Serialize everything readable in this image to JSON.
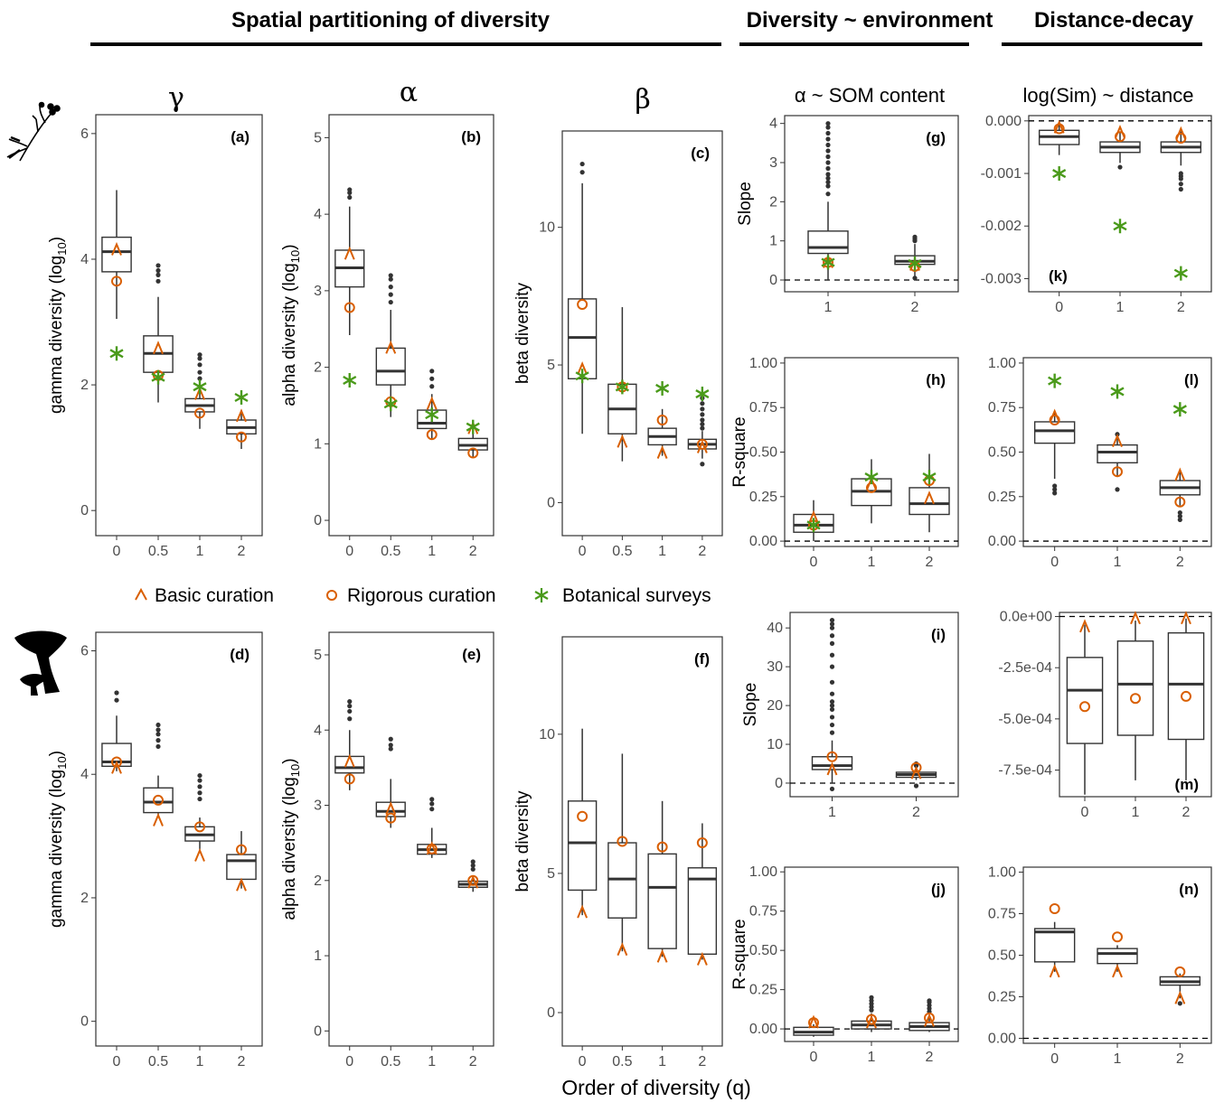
{
  "headers": {
    "spatial": "Spatial partitioning of diversity",
    "environment": "Diversity ~ environment",
    "decay": "Distance-decay"
  },
  "column_titles": {
    "gamma": "γ",
    "alpha": "α",
    "beta": "β",
    "som": "α ~ SOM content",
    "sim": "log(Sim) ~ distance"
  },
  "legend": {
    "basic": "Basic curation",
    "rigorous": "Rigorous curation",
    "surveys": "Botanical surveys"
  },
  "xlabel": "Order of diversity (q)",
  "icons": {
    "top": "plant-icon",
    "bottom": "mushroom-icon"
  },
  "colors": {
    "basic": "#d95f02",
    "rigorous": "#d95f02",
    "surveys": "#4a9a1a",
    "box": "#333333"
  },
  "chart_data": [
    {
      "id": "a",
      "label": "(a)",
      "type": "box",
      "ylabel": "gamma diversity (log10)",
      "ylim": [
        -0.4,
        6.3
      ],
      "yticks": [
        0,
        2,
        4,
        6
      ],
      "categories": [
        "0",
        "0.5",
        "1",
        "2"
      ],
      "boxes": [
        {
          "q1": 3.8,
          "med": 4.12,
          "q3": 4.35,
          "lo": 3.05,
          "hi": 5.1,
          "out": []
        },
        {
          "q1": 2.2,
          "med": 2.5,
          "q3": 2.78,
          "lo": 1.72,
          "hi": 3.4,
          "out": [
            3.65,
            3.75,
            3.82,
            3.9
          ]
        },
        {
          "q1": 1.57,
          "med": 1.67,
          "q3": 1.78,
          "lo": 1.3,
          "hi": 2.0,
          "out": [
            2.1,
            2.2,
            2.32,
            2.42,
            2.48
          ]
        },
        {
          "q1": 1.22,
          "med": 1.32,
          "q3": 1.44,
          "lo": 0.98,
          "hi": 1.6,
          "out": []
        }
      ],
      "basic": [
        4.15,
        2.58,
        1.85,
        1.5
      ],
      "rigorous": [
        3.65,
        2.15,
        1.55,
        1.17
      ],
      "surveys": [
        2.5,
        2.12,
        1.97,
        1.8
      ]
    },
    {
      "id": "b",
      "label": "(b)",
      "type": "box",
      "ylabel": "alpha diversity (log10)",
      "ylim": [
        -0.2,
        5.3
      ],
      "yticks": [
        0,
        1,
        2,
        3,
        4,
        5
      ],
      "categories": [
        "0",
        "0.5",
        "1",
        "2"
      ],
      "boxes": [
        {
          "q1": 3.05,
          "med": 3.3,
          "q3": 3.53,
          "lo": 2.42,
          "hi": 4.1,
          "out": [
            4.22,
            4.28,
            4.32
          ]
        },
        {
          "q1": 1.77,
          "med": 1.95,
          "q3": 2.25,
          "lo": 1.35,
          "hi": 2.75,
          "out": [
            2.85,
            2.95,
            3.05,
            3.15,
            3.2
          ]
        },
        {
          "q1": 1.2,
          "med": 1.27,
          "q3": 1.44,
          "lo": 1.05,
          "hi": 1.65,
          "out": [
            1.75,
            1.85,
            1.95
          ]
        },
        {
          "q1": 0.92,
          "med": 0.98,
          "q3": 1.07,
          "lo": 0.82,
          "hi": 1.18,
          "out": []
        }
      ],
      "basic": [
        3.48,
        2.25,
        1.52,
        1.2
      ],
      "rigorous": [
        2.78,
        1.55,
        1.12,
        0.88
      ],
      "surveys": [
        1.83,
        1.52,
        1.38,
        1.22
      ]
    },
    {
      "id": "c",
      "label": "(c)",
      "type": "box",
      "ylabel": "beta diversity",
      "ylim": [
        -1.2,
        13.5
      ],
      "yticks": [
        0,
        5,
        10
      ],
      "categories": [
        "0",
        "0.5",
        "1",
        "2"
      ],
      "boxes": [
        {
          "q1": 4.5,
          "med": 6.0,
          "q3": 7.4,
          "lo": 2.5,
          "hi": 11.6,
          "out": [
            12.0,
            12.3
          ]
        },
        {
          "q1": 2.5,
          "med": 3.4,
          "q3": 4.3,
          "lo": 1.5,
          "hi": 7.1,
          "out": []
        },
        {
          "q1": 2.1,
          "med": 2.4,
          "q3": 2.7,
          "lo": 1.7,
          "hi": 3.4,
          "out": []
        },
        {
          "q1": 1.95,
          "med": 2.12,
          "q3": 2.3,
          "lo": 1.6,
          "hi": 2.6,
          "out": [
            1.4,
            2.7,
            2.85,
            3.0,
            3.2,
            3.4,
            3.6,
            3.8
          ]
        }
      ],
      "basic": [
        4.85,
        2.2,
        1.8,
        2.0
      ],
      "rigorous": [
        7.2,
        4.2,
        3.0,
        2.12
      ],
      "surveys": [
        4.6,
        4.2,
        4.15,
        3.95
      ]
    },
    {
      "id": "d",
      "label": "(d)",
      "type": "box",
      "ylabel": "gamma diversity (log10)",
      "ylim": [
        -0.4,
        6.3
      ],
      "yticks": [
        0,
        2,
        4,
        6
      ],
      "categories": [
        "0",
        "0.5",
        "1",
        "2"
      ],
      "boxes": [
        {
          "q1": 4.13,
          "med": 4.2,
          "q3": 4.5,
          "lo": 4.05,
          "hi": 4.95,
          "out": [
            5.2,
            5.32
          ]
        },
        {
          "q1": 3.38,
          "med": 3.55,
          "q3": 3.78,
          "lo": 3.3,
          "hi": 3.98,
          "out": [
            4.45,
            4.55,
            4.65,
            4.72,
            4.8
          ]
        },
        {
          "q1": 2.92,
          "med": 3.02,
          "q3": 3.15,
          "lo": 2.78,
          "hi": 3.3,
          "out": [
            3.6,
            3.7,
            3.8,
            3.9,
            3.98
          ]
        },
        {
          "q1": 2.3,
          "med": 2.6,
          "q3": 2.7,
          "lo": 2.15,
          "hi": 3.08,
          "out": []
        }
      ],
      "basic": [
        4.1,
        3.25,
        2.68,
        2.2
      ],
      "rigorous": [
        4.2,
        3.58,
        3.15,
        2.78
      ],
      "surveys": []
    },
    {
      "id": "e",
      "label": "(e)",
      "type": "box",
      "ylabel": "alpha diversity (log10)",
      "ylim": [
        -0.2,
        5.3
      ],
      "yticks": [
        0,
        1,
        2,
        3,
        4,
        5
      ],
      "categories": [
        "0",
        "0.5",
        "1",
        "2"
      ],
      "boxes": [
        {
          "q1": 3.43,
          "med": 3.5,
          "q3": 3.65,
          "lo": 3.2,
          "hi": 4.0,
          "out": [
            4.15,
            4.25,
            4.32,
            4.38
          ]
        },
        {
          "q1": 2.85,
          "med": 2.92,
          "q3": 3.04,
          "lo": 2.7,
          "hi": 3.35,
          "out": [
            3.75,
            3.8,
            3.88
          ]
        },
        {
          "q1": 2.35,
          "med": 2.41,
          "q3": 2.48,
          "lo": 2.3,
          "hi": 2.7,
          "out": [
            2.95,
            3.02,
            3.08
          ]
        },
        {
          "q1": 1.91,
          "med": 1.95,
          "q3": 1.99,
          "lo": 1.85,
          "hi": 2.05,
          "out": [
            2.15,
            2.2,
            2.25
          ]
        }
      ],
      "basic": [
        3.58,
        2.95,
        2.42,
        1.97
      ],
      "rigorous": [
        3.35,
        2.83,
        2.42,
        2.0
      ],
      "surveys": []
    },
    {
      "id": "f",
      "label": "(f)",
      "type": "box",
      "ylabel": "beta diversity",
      "ylim": [
        -1.2,
        13.5
      ],
      "yticks": [
        0,
        5,
        10
      ],
      "categories": [
        "0",
        "0.5",
        "1",
        "2"
      ],
      "boxes": [
        {
          "q1": 4.4,
          "med": 6.1,
          "q3": 7.6,
          "lo": 3.5,
          "hi": 10.2,
          "out": []
        },
        {
          "q1": 3.4,
          "med": 4.8,
          "q3": 6.1,
          "lo": 2.2,
          "hi": 9.3,
          "out": []
        },
        {
          "q1": 2.3,
          "med": 4.5,
          "q3": 5.7,
          "lo": 2.0,
          "hi": 7.6,
          "out": []
        },
        {
          "q1": 2.1,
          "med": 4.8,
          "q3": 5.2,
          "lo": 1.9,
          "hi": 6.8,
          "out": []
        }
      ],
      "basic": [
        3.6,
        2.25,
        2.0,
        1.9
      ],
      "rigorous": [
        7.05,
        6.15,
        5.95,
        6.1
      ],
      "surveys": []
    },
    {
      "id": "g",
      "label": "(g)",
      "type": "box",
      "ylabel": "Slope",
      "ylim": [
        -0.3,
        4.2
      ],
      "yticks": [
        0,
        1,
        2,
        3,
        4
      ],
      "ytick_labels": [
        "0",
        "1",
        "2",
        "3",
        "4"
      ],
      "categories": [
        "1",
        "2"
      ],
      "hline": 0,
      "boxes": [
        {
          "q1": 0.68,
          "med": 0.83,
          "q3": 1.25,
          "lo": 0.0,
          "hi": 2.0,
          "out": [
            2.2,
            2.4,
            2.5,
            2.6,
            2.7,
            2.85,
            3.0,
            3.15,
            3.3,
            3.45,
            3.6,
            3.75,
            3.9,
            4.0
          ]
        },
        {
          "q1": 0.4,
          "med": 0.48,
          "q3": 0.62,
          "lo": 0.1,
          "hi": 0.92,
          "out": [
            1.0,
            1.05,
            1.1,
            0.05
          ]
        }
      ],
      "basic": [
        0.45,
        0.38
      ],
      "rigorous": [
        0.45,
        0.35
      ],
      "surveys": [
        0.45,
        0.42
      ]
    },
    {
      "id": "h",
      "label": "(h)",
      "type": "box",
      "ylabel": "R-square",
      "ylim": [
        -0.03,
        1.03
      ],
      "yticks": [
        0,
        0.25,
        0.5,
        0.75,
        1
      ],
      "ytick_labels": [
        "0.00",
        "0.25",
        "0.50",
        "0.75",
        "1.00"
      ],
      "categories": [
        "0",
        "1",
        "2"
      ],
      "hline": 0,
      "boxes": [
        {
          "q1": 0.05,
          "med": 0.09,
          "q3": 0.15,
          "lo": 0.0,
          "hi": 0.23,
          "out": []
        },
        {
          "q1": 0.2,
          "med": 0.28,
          "q3": 0.35,
          "lo": 0.1,
          "hi": 0.46,
          "out": []
        },
        {
          "q1": 0.15,
          "med": 0.21,
          "q3": 0.3,
          "lo": 0.05,
          "hi": 0.49,
          "out": []
        }
      ],
      "basic": [
        0.13,
        0.32,
        0.24
      ],
      "rigorous": [
        0.09,
        0.3,
        0.34
      ],
      "surveys": [
        0.09,
        0.36,
        0.36
      ]
    },
    {
      "id": "i",
      "label": "(i)",
      "type": "box",
      "ylabel": "Slope",
      "ylim": [
        -3.5,
        44
      ],
      "yticks": [
        0,
        10,
        20,
        30,
        40
      ],
      "ytick_labels": [
        "0",
        "10",
        "20",
        "30",
        "40"
      ],
      "categories": [
        "1",
        "2"
      ],
      "hline": 0,
      "boxes": [
        {
          "q1": 3.5,
          "med": 4.5,
          "q3": 6.8,
          "lo": 0.0,
          "hi": 11.0,
          "out": [
            13,
            15,
            17,
            19,
            20,
            21,
            23,
            26,
            30,
            33,
            36,
            38,
            40,
            41,
            42,
            -1.5
          ]
        },
        {
          "q1": 1.5,
          "med": 2.2,
          "q3": 2.8,
          "lo": 0.8,
          "hi": 3.5,
          "out": [
            4.5,
            5.0,
            -0.7
          ]
        }
      ],
      "basic": [
        3.5,
        2.5
      ],
      "rigorous": [
        6.8,
        4.0
      ],
      "surveys": []
    },
    {
      "id": "j",
      "label": "(j)",
      "type": "box",
      "ylabel": "R-square",
      "ylim": [
        -0.08,
        1.03
      ],
      "yticks": [
        0,
        0.25,
        0.5,
        0.75,
        1
      ],
      "ytick_labels": [
        "0.00",
        "0.25",
        "0.50",
        "0.75",
        "1.00"
      ],
      "categories": [
        "0",
        "1",
        "2"
      ],
      "hline": 0,
      "boxes": [
        {
          "q1": -0.04,
          "med": -0.02,
          "q3": 0.01,
          "lo": -0.05,
          "hi": 0.03,
          "out": []
        },
        {
          "q1": 0.0,
          "med": 0.025,
          "q3": 0.05,
          "lo": -0.02,
          "hi": 0.1,
          "out": [
            0.12,
            0.14,
            0.16,
            0.18,
            0.2
          ]
        },
        {
          "q1": -0.01,
          "med": 0.015,
          "q3": 0.04,
          "lo": -0.02,
          "hi": 0.09,
          "out": [
            0.11,
            0.13,
            0.15,
            0.17,
            0.18
          ]
        }
      ],
      "basic": [
        0.04,
        0.04,
        0.05
      ],
      "rigorous": [
        0.04,
        0.06,
        0.07
      ],
      "surveys": []
    },
    {
      "id": "k",
      "label": "(k)",
      "type": "box",
      "ylabel": "",
      "ylim": [
        -0.00325,
        0.0001
      ],
      "yticks": [
        0,
        -0.001,
        -0.002,
        -0.003
      ],
      "ytick_labels": [
        "0.000",
        "-0.001",
        "-0.002",
        "-0.003"
      ],
      "categories": [
        "0",
        "1",
        "2"
      ],
      "hline": 0,
      "label_pos": "bottom-left",
      "boxes": [
        {
          "q1": -0.00045,
          "med": -0.0003,
          "q3": -0.00018,
          "lo": -0.00065,
          "hi": -5e-05,
          "out": []
        },
        {
          "q1": -0.0006,
          "med": -0.0005,
          "q3": -0.0004,
          "lo": -0.0008,
          "hi": -0.0002,
          "out": [
            -0.00088
          ]
        },
        {
          "q1": -0.0006,
          "med": -0.0005,
          "q3": -0.0004,
          "lo": -0.00085,
          "hi": -0.0002,
          "out": [
            -0.001,
            -0.00105,
            -0.0011,
            -0.0012,
            -0.0013
          ]
        }
      ],
      "basic": [
        -0.00013,
        -0.00022,
        -0.00025
      ],
      "rigorous": [
        -0.00015,
        -0.0003,
        -0.00033
      ],
      "surveys": [
        -0.001,
        -0.002,
        -0.0029
      ]
    },
    {
      "id": "l",
      "label": "(l)",
      "type": "box",
      "ylabel": "",
      "ylim": [
        -0.03,
        1.03
      ],
      "yticks": [
        0,
        0.25,
        0.5,
        0.75,
        1
      ],
      "ytick_labels": [
        "0.00",
        "0.25",
        "0.50",
        "0.75",
        "1.00"
      ],
      "categories": [
        "0",
        "1",
        "2"
      ],
      "hline": 0,
      "boxes": [
        {
          "q1": 0.55,
          "med": 0.62,
          "q3": 0.67,
          "lo": 0.35,
          "hi": 0.72,
          "out": [
            0.27,
            0.29,
            0.31
          ]
        },
        {
          "q1": 0.44,
          "med": 0.5,
          "q3": 0.54,
          "lo": 0.36,
          "hi": 0.58,
          "out": [
            0.29,
            0.6
          ]
        },
        {
          "q1": 0.26,
          "med": 0.3,
          "q3": 0.34,
          "lo": 0.2,
          "hi": 0.4,
          "out": [
            0.12,
            0.14,
            0.16
          ]
        }
      ],
      "basic": [
        0.7,
        0.56,
        0.37
      ],
      "rigorous": [
        0.68,
        0.39,
        0.22
      ],
      "surveys": [
        0.9,
        0.84,
        0.74
      ]
    },
    {
      "id": "m",
      "label": "(m)",
      "type": "box",
      "ylabel": "",
      "ylim": [
        -0.00088,
        2e-05
      ],
      "yticks": [
        0,
        -0.00025,
        -0.0005,
        -0.00075
      ],
      "ytick_labels": [
        "0.0e+00",
        "-2.5e-04",
        "-5.0e-04",
        "-7.5e-04"
      ],
      "categories": [
        "0",
        "1",
        "2"
      ],
      "hline": 0,
      "label_pos": "bottom-right",
      "boxes": [
        {
          "q1": -0.00062,
          "med": -0.00036,
          "q3": -0.0002,
          "lo": -0.00087,
          "hi": -4e-05,
          "out": []
        },
        {
          "q1": -0.00058,
          "med": -0.00033,
          "q3": -0.00012,
          "lo": -0.0008,
          "hi": -2e-05,
          "out": []
        },
        {
          "q1": -0.0006,
          "med": -0.00033,
          "q3": -8e-05,
          "lo": -0.0008,
          "hi": -1e-05,
          "out": []
        }
      ],
      "basic": [
        -5e-05,
        -1e-05,
        -1e-05
      ],
      "rigorous": [
        -0.00044,
        -0.0004,
        -0.00039
      ],
      "surveys": []
    },
    {
      "id": "n",
      "label": "(n)",
      "type": "box",
      "ylabel": "",
      "ylim": [
        -0.03,
        1.03
      ],
      "yticks": [
        0,
        0.25,
        0.5,
        0.75,
        1
      ],
      "ytick_labels": [
        "0.00",
        "0.25",
        "0.50",
        "0.75",
        "1.00"
      ],
      "categories": [
        "0",
        "1",
        "2"
      ],
      "hline": 0,
      "boxes": [
        {
          "q1": 0.46,
          "med": 0.64,
          "q3": 0.66,
          "lo": 0.4,
          "hi": 0.7,
          "out": []
        },
        {
          "q1": 0.45,
          "med": 0.51,
          "q3": 0.54,
          "lo": 0.4,
          "hi": 0.56,
          "out": []
        },
        {
          "q1": 0.32,
          "med": 0.34,
          "q3": 0.37,
          "lo": 0.24,
          "hi": 0.39,
          "out": [
            0.21
          ]
        }
      ],
      "basic": [
        0.4,
        0.4,
        0.24
      ],
      "rigorous": [
        0.78,
        0.61,
        0.4
      ],
      "surveys": []
    }
  ]
}
